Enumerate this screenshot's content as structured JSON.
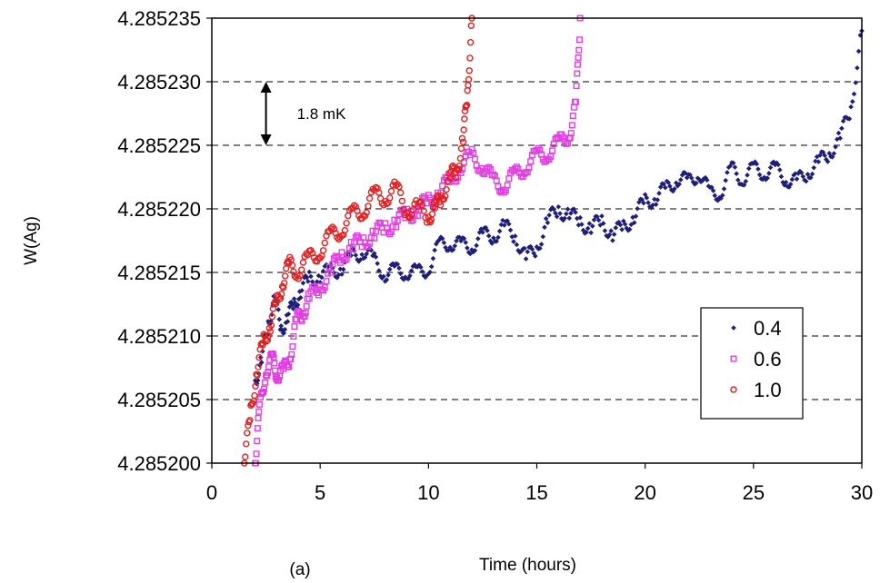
{
  "chart_data": {
    "type": "scatter",
    "xlabel": "Time (hours)",
    "ylabel": "W(Ag)",
    "panel_label": "(a)",
    "xlim": [
      0,
      30
    ],
    "ylim": [
      4.2852,
      4.285235
    ],
    "x_ticks": [
      0,
      5,
      10,
      15,
      20,
      25,
      30
    ],
    "y_ticks": [
      4.2852,
      4.285205,
      4.28521,
      4.285215,
      4.28522,
      4.285225,
      4.28523,
      4.285235
    ],
    "y_tick_labels": [
      "4.285200",
      "4.285205",
      "4.285210",
      "4.285215",
      "4.285220",
      "4.285225",
      "4.285230",
      "4.285235"
    ],
    "grid": "horizontal dashed",
    "legend_position": "right",
    "annotation": {
      "text": "1.8 mK",
      "arrow_from": 4.28523,
      "arrow_to": 4.285225,
      "x": 2.5
    },
    "series": [
      {
        "name": "0.4",
        "marker": "diamond",
        "color": "#1f1f7a",
        "points": [
          [
            2.0,
            4.2852065
          ],
          [
            2.3,
            4.285208
          ],
          [
            2.6,
            4.285211
          ],
          [
            2.9,
            4.285213
          ],
          [
            3.2,
            4.2852105
          ],
          [
            3.5,
            4.2852115
          ],
          [
            3.8,
            4.2852125
          ],
          [
            4.1,
            4.2852135
          ],
          [
            4.5,
            4.2852145
          ],
          [
            5.0,
            4.2852148
          ],
          [
            5.5,
            4.285215
          ],
          [
            6.0,
            4.2852155
          ],
          [
            6.5,
            4.2852162
          ],
          [
            7.0,
            4.2852168
          ],
          [
            7.5,
            4.2852158
          ],
          [
            8.0,
            4.285215
          ],
          [
            8.5,
            4.285215
          ],
          [
            9.0,
            4.2852152
          ],
          [
            9.5,
            4.2852148
          ],
          [
            10.0,
            4.2852155
          ],
          [
            10.5,
            4.285217
          ],
          [
            11.0,
            4.2852175
          ],
          [
            11.5,
            4.285217
          ],
          [
            12.0,
            4.2852172
          ],
          [
            12.5,
            4.2852178
          ],
          [
            13.0,
            4.285218
          ],
          [
            13.5,
            4.2852185
          ],
          [
            14.0,
            4.285218
          ],
          [
            14.5,
            4.285216
          ],
          [
            15.0,
            4.285217
          ],
          [
            15.5,
            4.285219
          ],
          [
            16.0,
            4.28522
          ],
          [
            16.5,
            4.2852195
          ],
          [
            17.0,
            4.285219
          ],
          [
            17.5,
            4.2852185
          ],
          [
            18.0,
            4.285219
          ],
          [
            18.5,
            4.285218
          ],
          [
            19.0,
            4.2852185
          ],
          [
            19.5,
            4.2852195
          ],
          [
            20.0,
            4.2852205
          ],
          [
            20.5,
            4.285221
          ],
          [
            21.0,
            4.2852215
          ],
          [
            21.5,
            4.2852225
          ],
          [
            22.0,
            4.285222
          ],
          [
            22.5,
            4.285223
          ],
          [
            23.0,
            4.285221
          ],
          [
            23.5,
            4.2852215
          ],
          [
            24.0,
            4.285223
          ],
          [
            24.5,
            4.2852225
          ],
          [
            25.0,
            4.285223
          ],
          [
            25.5,
            4.285223
          ],
          [
            26.0,
            4.285223
          ],
          [
            26.5,
            4.2852225
          ],
          [
            27.0,
            4.285222
          ],
          [
            27.5,
            4.285223
          ],
          [
            28.0,
            4.2852235
          ],
          [
            28.5,
            4.2852245
          ],
          [
            29.0,
            4.2852255
          ],
          [
            29.5,
            4.285228
          ],
          [
            30.0,
            4.285234
          ]
        ]
      },
      {
        "name": "0.6",
        "marker": "square",
        "color": "#e040e0",
        "points": [
          [
            2.0,
            4.2852
          ],
          [
            2.2,
            4.285204
          ],
          [
            2.5,
            4.2852075
          ],
          [
            2.8,
            4.285208
          ],
          [
            3.0,
            4.2852072
          ],
          [
            3.3,
            4.285207
          ],
          [
            3.6,
            4.2852085
          ],
          [
            3.9,
            4.285211
          ],
          [
            4.2,
            4.285212
          ],
          [
            4.5,
            4.2852128
          ],
          [
            5.0,
            4.285214
          ],
          [
            5.5,
            4.285215
          ],
          [
            6.0,
            4.2852165
          ],
          [
            6.5,
            4.285217
          ],
          [
            7.0,
            4.2852175
          ],
          [
            7.5,
            4.285218
          ],
          [
            8.0,
            4.2852185
          ],
          [
            8.5,
            4.285219
          ],
          [
            9.0,
            4.2852195
          ],
          [
            9.5,
            4.28522
          ],
          [
            10.0,
            4.2852205
          ],
          [
            10.5,
            4.2852215
          ],
          [
            11.0,
            4.285222
          ],
          [
            11.5,
            4.2852235
          ],
          [
            12.0,
            4.285224
          ],
          [
            12.5,
            4.2852235
          ],
          [
            13.0,
            4.285222
          ],
          [
            13.5,
            4.285222
          ],
          [
            14.0,
            4.2852225
          ],
          [
            14.5,
            4.2852235
          ],
          [
            15.0,
            4.285224
          ],
          [
            15.5,
            4.2852245
          ],
          [
            16.0,
            4.285225
          ],
          [
            16.5,
            4.285226
          ],
          [
            16.8,
            4.285228
          ],
          [
            17.0,
            4.285235
          ]
        ]
      },
      {
        "name": "1.0",
        "marker": "circle",
        "color": "#e02020",
        "points": [
          [
            1.5,
            4.2852
          ],
          [
            1.8,
            4.285204
          ],
          [
            2.1,
            4.2852075
          ],
          [
            2.4,
            4.2852095
          ],
          [
            2.7,
            4.285211
          ],
          [
            3.0,
            4.2852125
          ],
          [
            3.3,
            4.2852145
          ],
          [
            3.6,
            4.2852155
          ],
          [
            4.0,
            4.2852152
          ],
          [
            4.5,
            4.285216
          ],
          [
            5.0,
            4.2852168
          ],
          [
            5.5,
            4.2852178
          ],
          [
            6.0,
            4.2852185
          ],
          [
            6.5,
            4.2852195
          ],
          [
            7.0,
            4.28522
          ],
          [
            7.5,
            4.285221
          ],
          [
            8.0,
            4.285221
          ],
          [
            8.5,
            4.2852215
          ],
          [
            9.0,
            4.28522
          ],
          [
            9.5,
            4.28522
          ],
          [
            10.0,
            4.2852195
          ],
          [
            10.3,
            4.28522
          ],
          [
            10.6,
            4.285221
          ],
          [
            11.0,
            4.2852225
          ],
          [
            11.3,
            4.285223
          ],
          [
            11.6,
            4.2852255
          ],
          [
            11.8,
            4.285229
          ],
          [
            12.0,
            4.285235
          ]
        ]
      }
    ]
  }
}
